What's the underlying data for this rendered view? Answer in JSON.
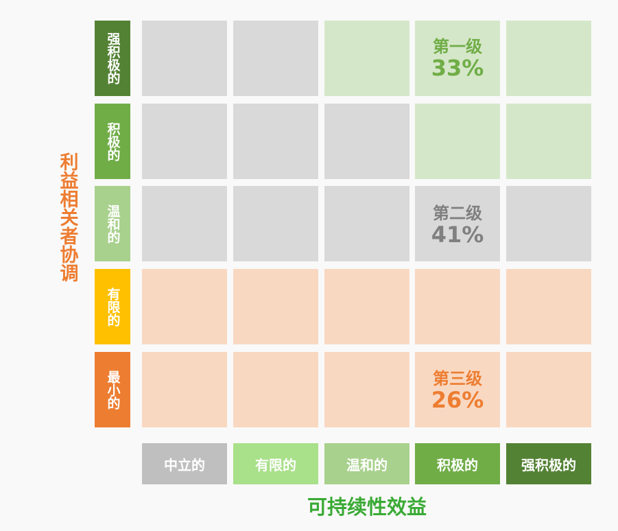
{
  "y_axis": {
    "title": "利益相关者协调"
  },
  "x_axis": {
    "title": "可持续性效益"
  },
  "rows": [
    {
      "label": "强积极的",
      "color": "#548235"
    },
    {
      "label": "积极的",
      "color": "#70ad47"
    },
    {
      "label": "温和的",
      "color": "#a9d18e"
    },
    {
      "label": "有限的",
      "color": "#ffc000"
    },
    {
      "label": "最小的",
      "color": "#ed7d31"
    }
  ],
  "columns": [
    {
      "label": "中立的",
      "color": "#bfbfbf"
    },
    {
      "label": "有限的",
      "color": "#a9e08a"
    },
    {
      "label": "温和的",
      "color": "#a9d18e"
    },
    {
      "label": "积极的",
      "color": "#70ad47"
    },
    {
      "label": "强积极的",
      "color": "#548235"
    }
  ],
  "tier_colors": {
    "green": "#d5e7c9",
    "gray": "#d9d9d9",
    "orange": "#f9d8c1"
  },
  "grid": [
    [
      "gray",
      "gray",
      "green",
      "green",
      "green"
    ],
    [
      "gray",
      "gray",
      "gray",
      "green",
      "green"
    ],
    [
      "gray",
      "gray",
      "gray",
      "gray",
      "gray"
    ],
    [
      "orange",
      "orange",
      "orange",
      "orange",
      "orange"
    ],
    [
      "orange",
      "orange",
      "orange",
      "orange",
      "orange"
    ]
  ],
  "tiers": [
    {
      "level": "第一级",
      "percent": "33%",
      "color": "#70ad47"
    },
    {
      "level": "第二级",
      "percent": "41%",
      "color": "#808080"
    },
    {
      "level": "第三级",
      "percent": "26%",
      "color": "#ed7d31"
    }
  ]
}
